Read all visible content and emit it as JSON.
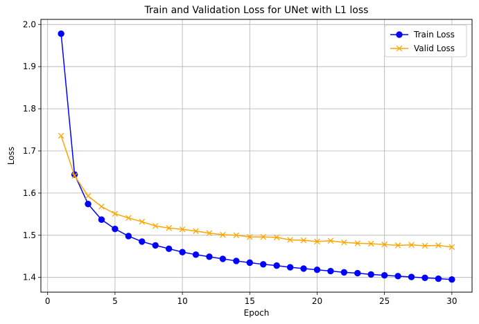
{
  "chart_data": {
    "type": "line",
    "title": "Train and Validation Loss for UNet with L1 loss",
    "xlabel": "Epoch",
    "ylabel": "Loss",
    "xlim": [
      -0.5,
      31.5
    ],
    "ylim": [
      1.365,
      2.012
    ],
    "xticks": [
      0,
      5,
      10,
      15,
      20,
      25,
      30
    ],
    "yticks": [
      1.4,
      1.5,
      1.6,
      1.7,
      1.8,
      1.9,
      2.0
    ],
    "xtick_labels": [
      "0",
      "5",
      "10",
      "15",
      "20",
      "25",
      "30"
    ],
    "ytick_labels": [
      "1.4",
      "1.5",
      "1.6",
      "1.7",
      "1.8",
      "1.9",
      "2.0"
    ],
    "grid": true,
    "legend_position": "top-right",
    "x": [
      1,
      2,
      3,
      4,
      5,
      6,
      7,
      8,
      9,
      10,
      11,
      12,
      13,
      14,
      15,
      16,
      17,
      18,
      19,
      20,
      21,
      22,
      23,
      24,
      25,
      26,
      27,
      28,
      29,
      30
    ],
    "series": [
      {
        "name": "Train Loss",
        "color": "#0000ff",
        "marker": "circle",
        "values": [
          1.978,
          1.644,
          1.574,
          1.537,
          1.515,
          1.498,
          1.485,
          1.476,
          1.468,
          1.46,
          1.454,
          1.449,
          1.444,
          1.439,
          1.435,
          1.431,
          1.428,
          1.424,
          1.421,
          1.418,
          1.415,
          1.412,
          1.41,
          1.407,
          1.405,
          1.403,
          1.401,
          1.399,
          1.397,
          1.395
        ]
      },
      {
        "name": "Valid Loss",
        "color": "#ffa500",
        "marker": "x",
        "values": [
          1.736,
          1.641,
          1.593,
          1.568,
          1.551,
          1.541,
          1.532,
          1.522,
          1.517,
          1.514,
          1.51,
          1.505,
          1.501,
          1.5,
          1.496,
          1.496,
          1.495,
          1.489,
          1.488,
          1.485,
          1.487,
          1.483,
          1.481,
          1.48,
          1.478,
          1.476,
          1.477,
          1.475,
          1.476,
          1.472
        ]
      }
    ]
  }
}
